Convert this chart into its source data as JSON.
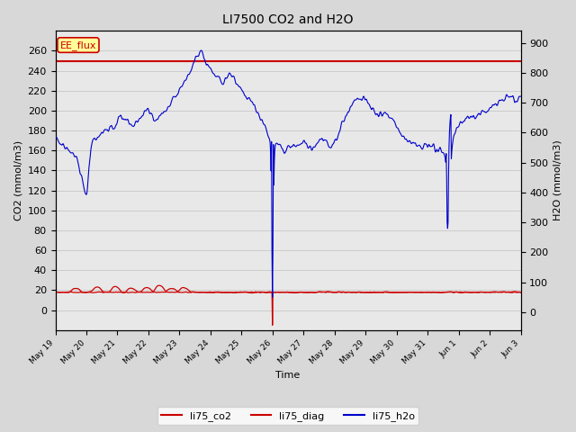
{
  "title": "LI7500 CO2 and H2O",
  "xlabel": "Time",
  "ylabel_left": "CO2 (mmol/m3)",
  "ylabel_right": "H2O (mmol/m3)",
  "ylim_left": [
    -20,
    280
  ],
  "ylim_right": [
    -60,
    940
  ],
  "annotation_text": "EE_flux",
  "annotation_color": "#cc0000",
  "annotation_bg": "#ffff99",
  "hline_value": 250,
  "hline_color": "#cc0000",
  "co2_color": "#cc0000",
  "diag_color": "#cc0000",
  "h2o_color": "#0000cc",
  "bg_color": "#d8d8d8",
  "plot_bg_color": "#e8e8e8",
  "n_points": 1000,
  "seed": 42,
  "tick_labels": [
    "May 19",
    "May 20",
    "May 21",
    "May 22",
    "May 23",
    "May 24",
    "May 25",
    "May 26",
    "May 27",
    "May 28",
    "May 29",
    "May 30",
    "May 31",
    "Jun 1",
    "Jun 2",
    "Jun 3"
  ],
  "figsize": [
    6.4,
    4.8
  ],
  "dpi": 100
}
